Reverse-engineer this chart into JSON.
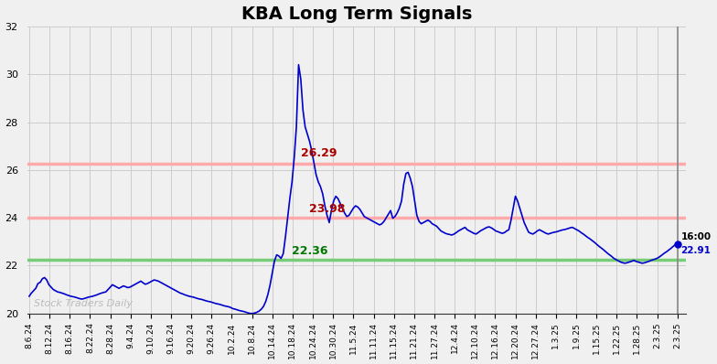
{
  "title": "KBA Long Term Signals",
  "title_fontsize": 14,
  "title_fontweight": "bold",
  "ylim": [
    20,
    32
  ],
  "yticks": [
    20,
    22,
    24,
    26,
    28,
    30,
    32
  ],
  "line_color": "#0000cc",
  "line_width": 1.2,
  "hline_red_upper": 26.25,
  "hline_red_lower": 24.0,
  "hline_green": 22.25,
  "hline_red_color": "#ffaaaa",
  "hline_green_color": "#77cc77",
  "annotation_high_val": "26.29",
  "annotation_high_color": "#aa0000",
  "annotation_mid_val": "23.98",
  "annotation_mid_color": "#aa0000",
  "annotation_low_val": "22.36",
  "annotation_low_color": "#007700",
  "watermark": "Stock Traders Daily",
  "watermark_color": "#bbbbbb",
  "end_label_time": "16:00",
  "end_label_val": "22.91",
  "end_dot_color": "#0000cc",
  "bg_color": "#f0f0f0",
  "grid_color": "#cccccc",
  "x_labels": [
    "8.6.24",
    "8.12.24",
    "8.16.24",
    "8.22.24",
    "8.28.24",
    "9.4.24",
    "9.10.24",
    "9.16.24",
    "9.20.24",
    "9.26.24",
    "10.2.24",
    "10.8.24",
    "10.14.24",
    "10.18.24",
    "10.24.24",
    "10.30.24",
    "11.5.24",
    "11.11.24",
    "11.15.24",
    "11.21.24",
    "11.27.24",
    "12.4.24",
    "12.10.24",
    "12.16.24",
    "12.20.24",
    "12.27.24",
    "1.3.25",
    "1.9.25",
    "1.15.25",
    "1.22.25",
    "1.28.25",
    "2.3.25",
    "2.3.25"
  ],
  "y_values": [
    20.72,
    20.85,
    20.95,
    21.05,
    21.25,
    21.3,
    21.45,
    21.5,
    21.4,
    21.2,
    21.1,
    21.0,
    20.95,
    20.9,
    20.88,
    20.85,
    20.82,
    20.78,
    20.75,
    20.72,
    20.7,
    20.68,
    20.65,
    20.62,
    20.6,
    20.62,
    20.65,
    20.68,
    20.7,
    20.72,
    20.75,
    20.78,
    20.82,
    20.85,
    20.88,
    20.9,
    21.0,
    21.1,
    21.2,
    21.15,
    21.1,
    21.05,
    21.1,
    21.15,
    21.12,
    21.08,
    21.1,
    21.15,
    21.2,
    21.25,
    21.3,
    21.35,
    21.28,
    21.22,
    21.25,
    21.3,
    21.35,
    21.4,
    21.38,
    21.35,
    21.3,
    21.25,
    21.2,
    21.15,
    21.1,
    21.05,
    21.0,
    20.95,
    20.9,
    20.85,
    20.82,
    20.78,
    20.75,
    20.72,
    20.7,
    20.68,
    20.65,
    20.62,
    20.6,
    20.58,
    20.55,
    20.52,
    20.5,
    20.48,
    20.45,
    20.42,
    20.4,
    20.38,
    20.35,
    20.32,
    20.3,
    20.28,
    20.25,
    20.2,
    20.18,
    20.15,
    20.12,
    20.1,
    20.08,
    20.05,
    20.02,
    20.0,
    20.0,
    20.02,
    20.05,
    20.1,
    20.18,
    20.3,
    20.5,
    20.8,
    21.2,
    21.7,
    22.2,
    22.45,
    22.4,
    22.3,
    22.5,
    23.2,
    24.0,
    24.8,
    25.5,
    26.5,
    27.8,
    30.4,
    29.8,
    28.5,
    27.8,
    27.5,
    27.2,
    26.8,
    26.3,
    25.8,
    25.5,
    25.3,
    25.0,
    24.5,
    24.1,
    23.8,
    24.3,
    24.7,
    24.9,
    24.8,
    24.6,
    24.4,
    24.2,
    24.05,
    24.1,
    24.25,
    24.4,
    24.5,
    24.45,
    24.35,
    24.2,
    24.05,
    24.0,
    23.95,
    23.9,
    23.85,
    23.8,
    23.75,
    23.7,
    23.75,
    23.85,
    24.0,
    24.15,
    24.3,
    23.98,
    24.05,
    24.2,
    24.4,
    24.7,
    25.4,
    25.85,
    25.9,
    25.65,
    25.3,
    24.7,
    24.1,
    23.85,
    23.75,
    23.8,
    23.85,
    23.9,
    23.85,
    23.75,
    23.7,
    23.65,
    23.55,
    23.45,
    23.4,
    23.35,
    23.32,
    23.3,
    23.28,
    23.32,
    23.38,
    23.45,
    23.5,
    23.55,
    23.6,
    23.5,
    23.45,
    23.4,
    23.35,
    23.32,
    23.38,
    23.45,
    23.5,
    23.55,
    23.6,
    23.62,
    23.58,
    23.52,
    23.45,
    23.42,
    23.38,
    23.35,
    23.38,
    23.45,
    23.5,
    23.9,
    24.4,
    24.9,
    24.7,
    24.4,
    24.1,
    23.8,
    23.6,
    23.4,
    23.35,
    23.32,
    23.38,
    23.45,
    23.5,
    23.45,
    23.4,
    23.35,
    23.32,
    23.35,
    23.38,
    23.4,
    23.42,
    23.45,
    23.48,
    23.5,
    23.52,
    23.55,
    23.58,
    23.6,
    23.55,
    23.5,
    23.45,
    23.38,
    23.32,
    23.25,
    23.18,
    23.12,
    23.05,
    22.98,
    22.9,
    22.82,
    22.75,
    22.68,
    22.6,
    22.52,
    22.45,
    22.38,
    22.3,
    22.25,
    22.2,
    22.15,
    22.12,
    22.1,
    22.12,
    22.15,
    22.18,
    22.22,
    22.18,
    22.15,
    22.12,
    22.1,
    22.12,
    22.15,
    22.18,
    22.22,
    22.25,
    22.28,
    22.32,
    22.38,
    22.45,
    22.52,
    22.58,
    22.65,
    22.72,
    22.8,
    22.88,
    22.91
  ]
}
